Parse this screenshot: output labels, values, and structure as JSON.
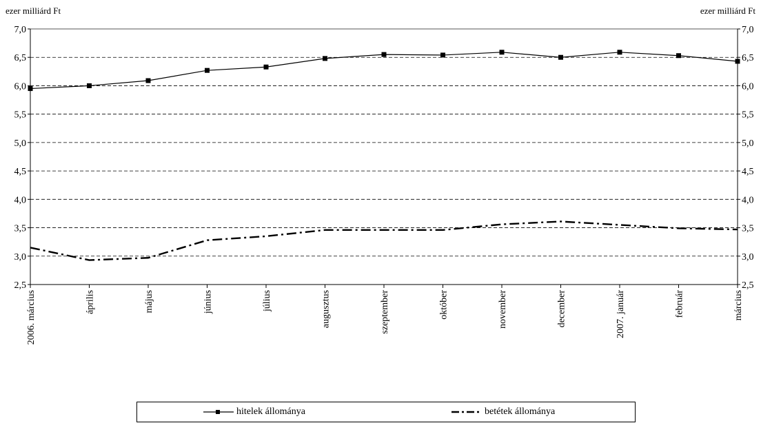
{
  "chart_data": {
    "type": "line",
    "title": "",
    "ylabel_left": "ezer milliárd Ft",
    "ylabel_right": "ezer milliárd Ft",
    "xlabel": "",
    "ylim": [
      2.5,
      7.0
    ],
    "yticks": [
      "7,0",
      "6,5",
      "6,0",
      "5,5",
      "5,0",
      "4,5",
      "4,0",
      "3,5",
      "3,0",
      "2,5"
    ],
    "ytick_values": [
      7.0,
      6.5,
      6.0,
      5.5,
      5.0,
      4.5,
      4.0,
      3.5,
      3.0,
      2.5
    ],
    "grid": "horizontal dashed",
    "categories": [
      "2006. március",
      "április",
      "május",
      "június",
      "július",
      "augusztus",
      "szeptember",
      "október",
      "november",
      "december",
      "2007. január",
      "február",
      "március"
    ],
    "series": [
      {
        "name": "hitelek állománya",
        "color": "#000000",
        "style": "solid-square-markers",
        "values": [
          5.95,
          6.0,
          6.09,
          6.27,
          6.33,
          6.48,
          6.55,
          6.54,
          6.59,
          6.5,
          6.59,
          6.53,
          6.43
        ]
      },
      {
        "name": "betétek állománya",
        "color": "#000000",
        "style": "dash-dot",
        "values": [
          3.15,
          2.93,
          2.97,
          3.28,
          3.35,
          3.46,
          3.46,
          3.46,
          3.56,
          3.61,
          3.55,
          3.49,
          3.47
        ]
      }
    ],
    "legend_position": "bottom"
  }
}
